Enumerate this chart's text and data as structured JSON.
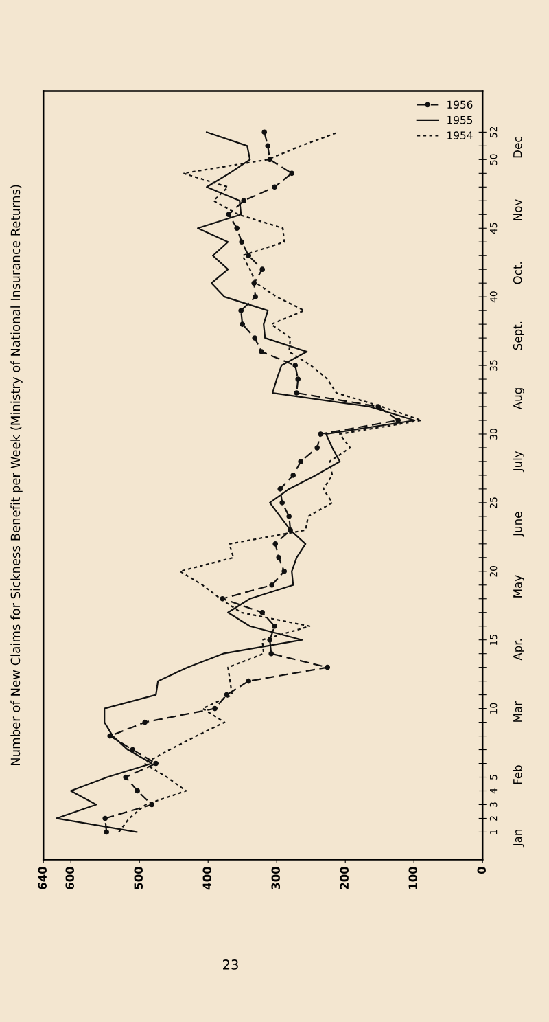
{
  "chart_data": {
    "type": "line",
    "title": "Number of New Claims for Sickness Benefit per Week (Ministry of National Insurance Returns)",
    "series": [
      {
        "name": "1956",
        "color": "#111111",
        "line_style": "dashed",
        "marker": "circle",
        "x": [
          548,
          550,
          482,
          503,
          520,
          476,
          510,
          543,
          492,
          390,
          373,
          341,
          226,
          308,
          310,
          303,
          321,
          379,
          307,
          289,
          297,
          302,
          280,
          282,
          292,
          295,
          276,
          265,
          241,
          236,
          123,
          152,
          271,
          269,
          273,
          322,
          332,
          350,
          352,
          331,
          333,
          321,
          341,
          351,
          358,
          370,
          348,
          303,
          278,
          310,
          313,
          318
        ],
        "values": [
          1,
          2,
          3,
          4,
          5,
          6,
          7,
          8,
          9,
          10,
          11,
          12,
          13,
          14,
          15,
          16,
          17,
          18,
          19,
          20,
          21,
          22,
          23,
          24,
          25,
          26,
          27,
          28,
          29,
          30,
          31,
          32,
          33,
          34,
          35,
          36,
          37,
          38,
          39,
          40,
          41,
          42,
          43,
          44,
          45,
          46,
          47,
          48,
          49,
          50,
          51,
          52
        ]
      },
      {
        "name": "1955",
        "color": "#111111",
        "line_style": "solid",
        "marker": "none",
        "x": [
          504,
          621,
          563,
          600,
          547,
          482,
          517,
          539,
          551,
          551,
          476,
          473,
          430,
          378,
          263,
          339,
          371,
          339,
          276,
          278,
          271,
          258,
          280,
          295,
          310,
          282,
          243,
          208,
          219,
          228,
          99,
          165,
          306,
          300,
          293,
          256,
          317,
          319,
          313,
          376,
          395,
          371,
          393,
          371,
          415,
          352,
          354,
          402,
          369,
          339,
          343,
          402
        ],
        "values": [
          1,
          2,
          3,
          4,
          5,
          6,
          7,
          8,
          9,
          10,
          11,
          12,
          13,
          14,
          15,
          16,
          17,
          18,
          19,
          20,
          21,
          22,
          23,
          24,
          25,
          26,
          27,
          28,
          29,
          30,
          31,
          32,
          33,
          34,
          35,
          36,
          37,
          38,
          39,
          40,
          41,
          42,
          43,
          44,
          45,
          46,
          47,
          48,
          49,
          50,
          51,
          52
        ]
      },
      {
        "name": "1954",
        "color": "#111111",
        "line_style": "dotted",
        "marker": "none",
        "x": [
          530,
          515,
          491,
          432,
          460,
          493,
          456,
          417,
          376,
          408,
          365,
          368,
          371,
          319,
          321,
          252,
          352,
          382,
          408,
          441,
          363,
          369,
          258,
          254,
          219,
          232,
          219,
          223,
          193,
          208,
          89,
          147,
          213,
          226,
          250,
          282,
          280,
          308,
          260,
          300,
          330,
          339,
          350,
          289,
          291,
          356,
          392,
          371,
          436,
          313,
          265,
          210
        ],
        "values": [
          1,
          2,
          3,
          4,
          5,
          6,
          7,
          8,
          9,
          10,
          11,
          12,
          13,
          14,
          15,
          16,
          17,
          18,
          19,
          20,
          21,
          22,
          23,
          24,
          25,
          26,
          27,
          28,
          29,
          30,
          31,
          32,
          33,
          34,
          35,
          36,
          37,
          38,
          39,
          40,
          41,
          42,
          43,
          44,
          45,
          46,
          47,
          48,
          49,
          50,
          51,
          52
        ]
      }
    ],
    "xlim": [
      640,
      0
    ],
    "xticks": [
      640,
      600,
      500,
      400,
      300,
      200,
      100,
      0
    ],
    "ylim": [
      -1,
      55
    ],
    "yticks": [
      1,
      2,
      3,
      4,
      5,
      {
        "value": 6,
        "label": null
      },
      {
        "value": 7,
        "label": null
      },
      {
        "value": 8,
        "label": null
      },
      {
        "value": 9,
        "label": null
      },
      10,
      {
        "value": 11,
        "label": null
      },
      {
        "value": 12,
        "label": null
      },
      {
        "value": 13,
        "label": null
      },
      {
        "value": 14,
        "label": null
      },
      15,
      {
        "value": 16,
        "label": null
      },
      {
        "value": 17,
        "label": null
      },
      {
        "value": 18,
        "label": null
      },
      {
        "value": 19,
        "label": null
      },
      20,
      {
        "value": 21,
        "label": null
      },
      {
        "value": 22,
        "label": null
      },
      {
        "value": 23,
        "label": null
      },
      {
        "value": 24,
        "label": null
      },
      25,
      {
        "value": 26,
        "label": null
      },
      {
        "value": 27,
        "label": null
      },
      {
        "value": 28,
        "label": null
      },
      {
        "value": 29,
        "label": null
      },
      30,
      {
        "value": 31,
        "label": null
      },
      {
        "value": 32,
        "label": null
      },
      {
        "value": 33,
        "label": null
      },
      {
        "value": 34,
        "label": null
      },
      35,
      {
        "value": 36,
        "label": null
      },
      {
        "value": 37,
        "label": null
      },
      {
        "value": 38,
        "label": null
      },
      {
        "value": 39,
        "label": null
      },
      40,
      {
        "value": 41,
        "label": null
      },
      {
        "value": 42,
        "label": null
      },
      {
        "value": 43,
        "label": null
      },
      {
        "value": 44,
        "label": null
      },
      45,
      {
        "value": 46,
        "label": null
      },
      {
        "value": 47,
        "label": null
      },
      {
        "value": 48,
        "label": null
      },
      {
        "value": 49,
        "label": null
      },
      50,
      {
        "value": 51,
        "label": null
      },
      52
    ],
    "y2_categories": [
      "Jan",
      "Feb",
      "Mar",
      "Apr.",
      "May",
      "June",
      "July",
      "Aug",
      "Sept.",
      "Oct.",
      "Nov",
      "Dec"
    ],
    "legend": "top right",
    "grid": false,
    "annotations": [
      "23"
    ]
  }
}
